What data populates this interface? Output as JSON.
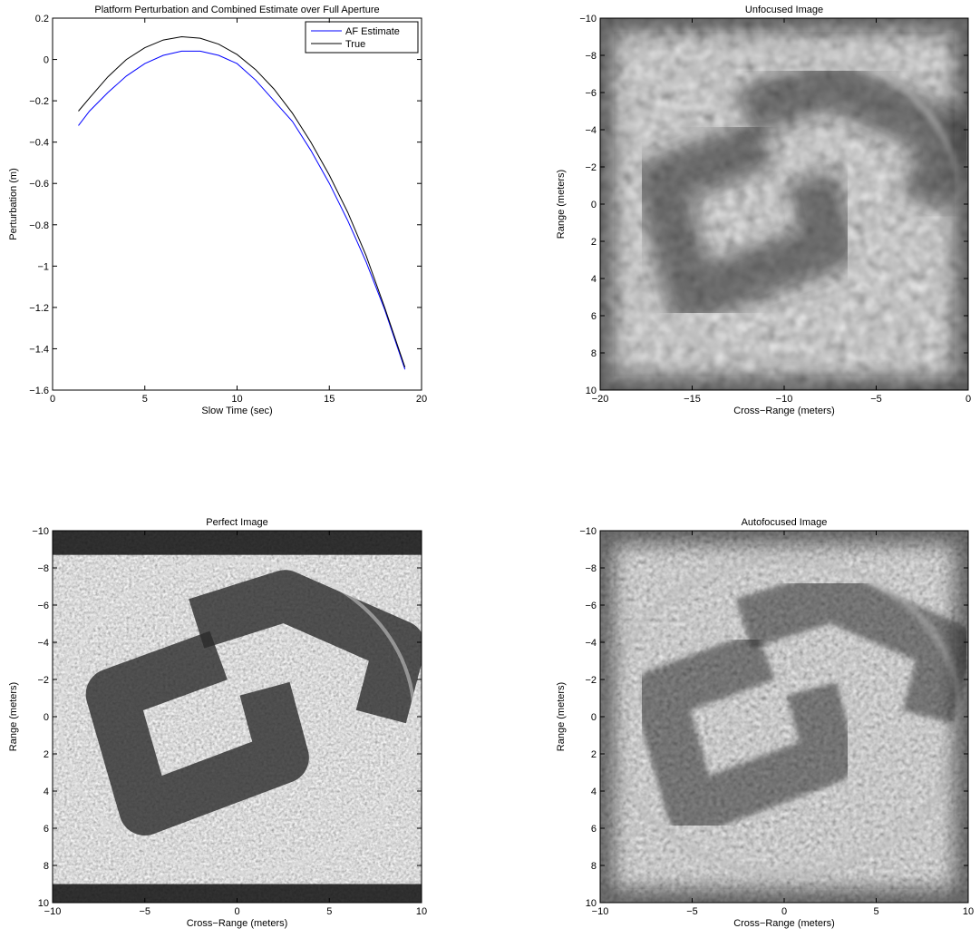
{
  "chart_data": [
    {
      "type": "line",
      "title": "Platform Perturbation and Combined Estimate over Full Aperture",
      "x_label": "Slow Time (sec)",
      "y_label": "Perturbation (m)",
      "x": [
        1.4,
        2,
        3,
        4,
        5,
        6,
        7,
        8,
        9,
        10,
        11,
        12,
        13,
        14,
        15,
        16,
        17,
        18,
        19.1
      ],
      "series": [
        {
          "name": "AF Estimate",
          "color": "#0000ff",
          "values": [
            -0.32,
            -0.25,
            -0.16,
            -0.08,
            -0.02,
            0.02,
            0.04,
            0.04,
            0.02,
            -0.02,
            -0.1,
            -0.2,
            -0.3,
            -0.44,
            -0.6,
            -0.78,
            -0.98,
            -1.21,
            -1.5
          ]
        },
        {
          "name": "True",
          "color": "#000000",
          "values": [
            -0.25,
            -0.187,
            -0.084,
            0.0,
            0.057,
            0.094,
            0.11,
            0.103,
            0.074,
            0.024,
            -0.049,
            -0.143,
            -0.26,
            -0.4,
            -0.56,
            -0.74,
            -0.95,
            -1.2,
            -1.49
          ]
        }
      ],
      "xlim": [
        0,
        20
      ],
      "xticks": [
        0,
        5,
        10,
        15,
        20
      ],
      "ylim": [
        -1.6,
        0.2
      ],
      "yticks": [
        0.2,
        0,
        {
          "value": -0.2,
          "label": "−0.2"
        },
        {
          "value": -0.4,
          "label": "−0.4"
        },
        {
          "value": -0.6,
          "label": "−0.6"
        },
        {
          "value": -0.8,
          "label": "−0.8"
        },
        {
          "value": -1,
          "label": "−1"
        },
        {
          "value": -1.2,
          "label": "−1.2"
        },
        {
          "value": -1.4,
          "label": "−1.4"
        },
        {
          "value": -1.6,
          "label": "−1.6"
        }
      ],
      "legend": "upper right"
    },
    {
      "type": "image",
      "title": "Unfocused Image",
      "x_label": "Cross−Range (meters)",
      "y_label": "Range (meters)",
      "xlim": [
        -20,
        0
      ],
      "xticks": [
        {
          "value": -20,
          "label": "−20"
        },
        {
          "value": -15,
          "label": "−15"
        },
        {
          "value": -10,
          "label": "−10"
        },
        {
          "value": -5,
          "label": "−5"
        },
        0
      ],
      "ylim": [
        -10,
        10
      ],
      "y_reverse": true,
      "yticks": [
        {
          "value": -10,
          "label": "−10"
        },
        {
          "value": -8,
          "label": "−8"
        },
        {
          "value": -6,
          "label": "−6"
        },
        {
          "value": -4,
          "label": "−4"
        },
        {
          "value": -2,
          "label": "−2"
        },
        0,
        2,
        4,
        6,
        8,
        10
      ]
    },
    {
      "type": "image",
      "title": "Perfect Image",
      "x_label": "Cross−Range (meters)",
      "y_label": "Range (meters)",
      "xlim": [
        -10,
        10
      ],
      "xticks": [
        {
          "value": -10,
          "label": "−10"
        },
        {
          "value": -5,
          "label": "−5"
        },
        0,
        5,
        10
      ],
      "ylim": [
        -10,
        10
      ],
      "y_reverse": true,
      "yticks": [
        {
          "value": -10,
          "label": "−10"
        },
        {
          "value": -8,
          "label": "−8"
        },
        {
          "value": -6,
          "label": "−6"
        },
        {
          "value": -4,
          "label": "−4"
        },
        {
          "value": -2,
          "label": "−2"
        },
        0,
        2,
        4,
        6,
        8,
        10
      ]
    },
    {
      "type": "image",
      "title": "Autofocused Image",
      "x_label": "Cross−Range (meters)",
      "y_label": "Range (meters)",
      "xlim": [
        -10,
        10
      ],
      "xticks": [
        {
          "value": -10,
          "label": "−10"
        },
        {
          "value": -5,
          "label": "−5"
        },
        0,
        5,
        10
      ],
      "ylim": [
        -10,
        10
      ],
      "y_reverse": true,
      "yticks": [
        {
          "value": -10,
          "label": "−10"
        },
        {
          "value": -8,
          "label": "−8"
        },
        {
          "value": -6,
          "label": "−6"
        },
        {
          "value": -4,
          "label": "−4"
        },
        {
          "value": -2,
          "label": "−2"
        },
        0,
        2,
        4,
        6,
        8,
        10
      ]
    }
  ]
}
